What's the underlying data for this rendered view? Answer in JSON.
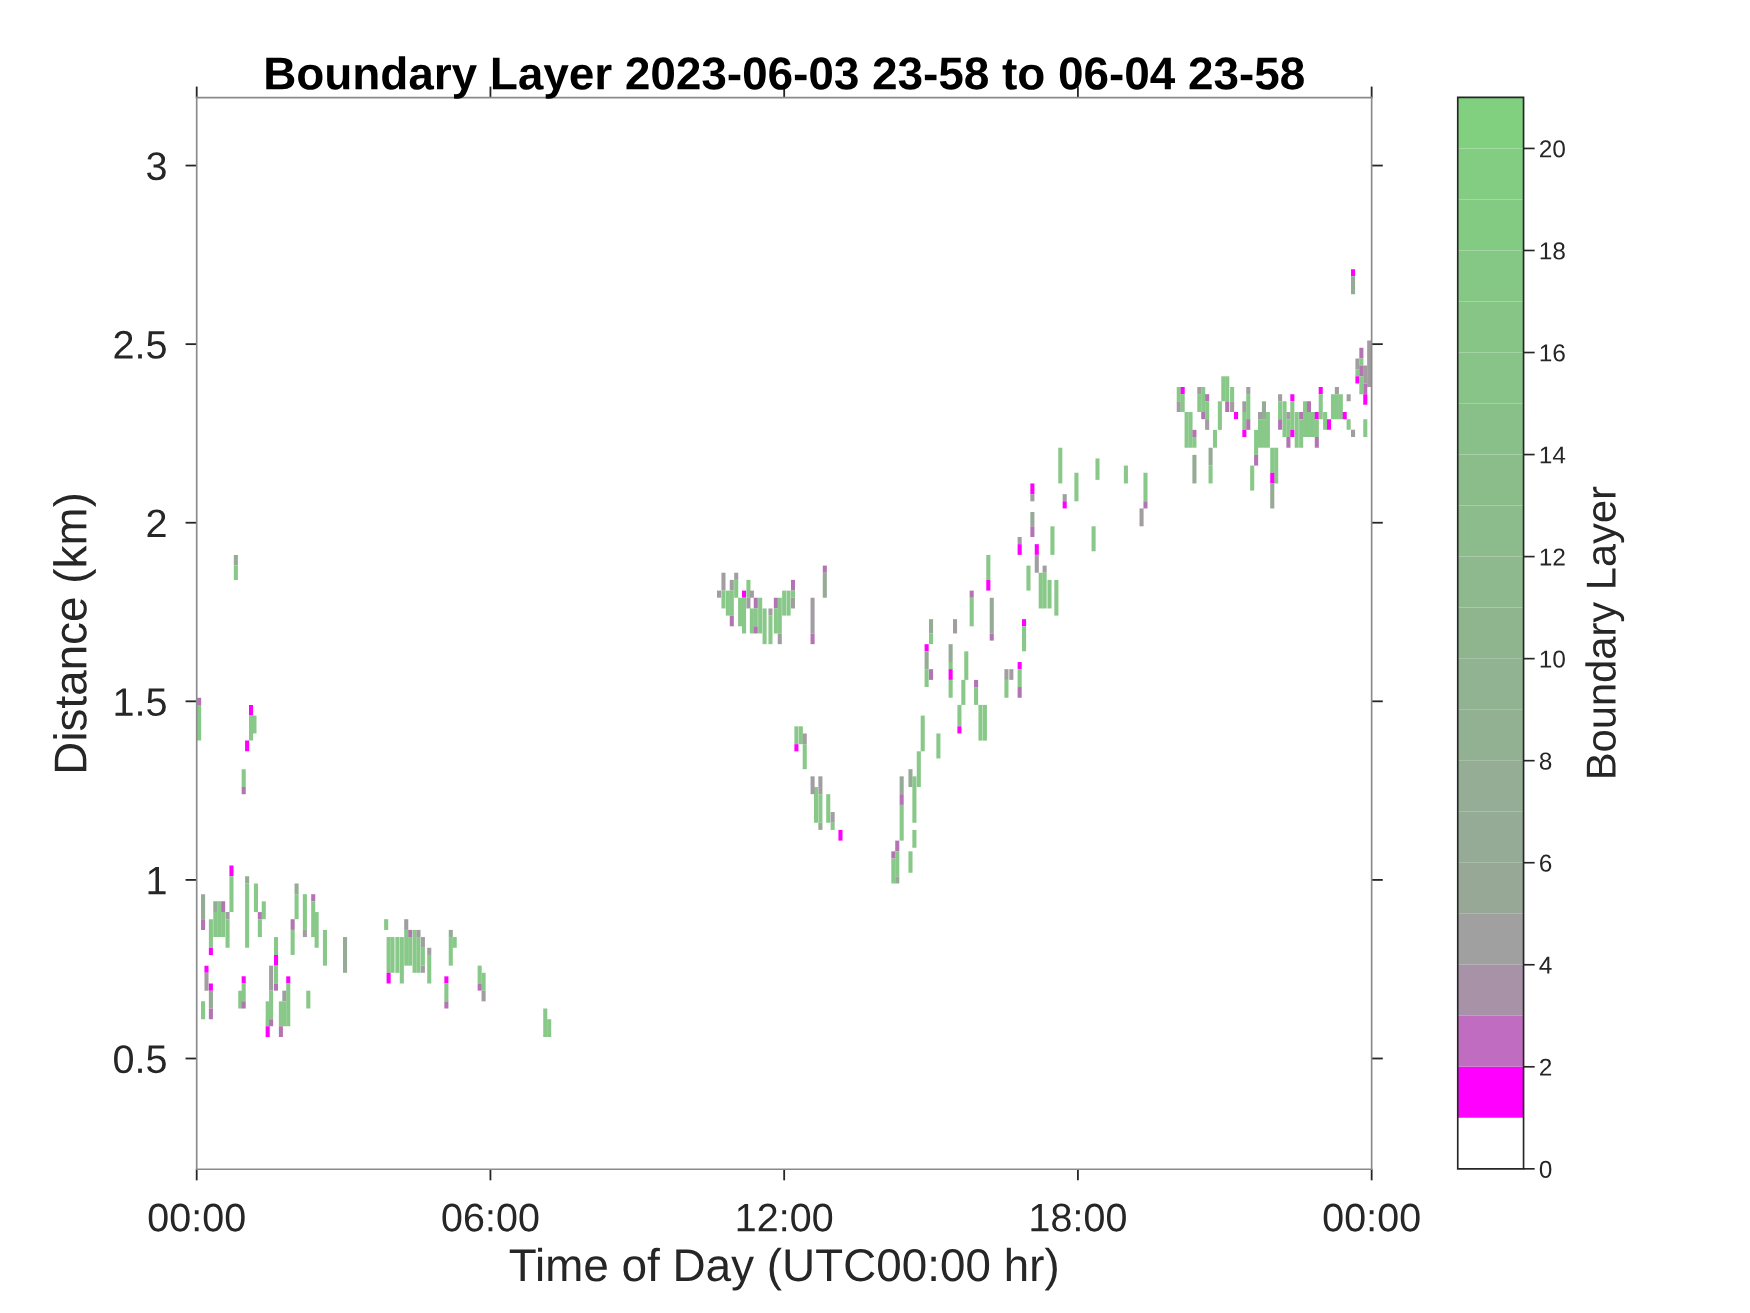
{
  "chart_data": {
    "type": "bar",
    "title": "Boundary Layer 2023-06-03 23-58 to 06-04 23-58",
    "xlabel": "Time of Day (UTC00:00 hr)",
    "ylabel": "Distance (km)",
    "clabel": "Boundary Layer",
    "series": [
      {
        "x": [
          0.05,
          0.13,
          0.2,
          0.29,
          0.38,
          0.46,
          0.54,
          0.63,
          0.71,
          0.8,
          0.89,
          0.96,
          1.03,
          1.11,
          1.18,
          1.21,
          1.29,
          1.37,
          1.45,
          1.52,
          1.62,
          1.72,
          1.79,
          1.87,
          1.96,
          2.04,
          2.21,
          2.28,
          2.38,
          2.45,
          2.62,
          3.03,
          3.87,
          3.92,
          4.0,
          4.1,
          4.19,
          4.28,
          4.36,
          4.45,
          4.53,
          4.62,
          4.75,
          5.1,
          5.19,
          5.27,
          5.78,
          5.86,
          7.12,
          7.2,
          10.67,
          10.76,
          10.85,
          10.93,
          11.02,
          11.1,
          11.18,
          11.27,
          11.34,
          11.42,
          11.51,
          11.6,
          11.72,
          11.83,
          11.91,
          12.0,
          12.09,
          12.18,
          12.25,
          12.34,
          12.42,
          12.58,
          12.65,
          12.74,
          12.83,
          12.9,
          12.99,
          13.15,
          14.23,
          14.31,
          14.4,
          14.58,
          14.66,
          14.75,
          14.83,
          14.91,
          15.0,
          15.15,
          15.4,
          15.49,
          15.58,
          15.66,
          15.72,
          15.83,
          15.92,
          16.01,
          16.1,
          16.17,
          16.24,
          16.54,
          16.64,
          16.81,
          16.9,
          16.99,
          17.07,
          17.16,
          17.24,
          17.32,
          17.42,
          17.48,
          17.56,
          17.64,
          17.73,
          17.97,
          18.32,
          18.4,
          18.98,
          19.3,
          19.38,
          20.06,
          20.14,
          20.22,
          20.3,
          20.38,
          20.48,
          20.56,
          20.64,
          20.71,
          20.8,
          20.9,
          20.97,
          21.05,
          21.15,
          21.23,
          21.4,
          21.48,
          21.56,
          21.64,
          21.72,
          21.8,
          21.88,
          21.97,
          22.05,
          22.13,
          22.22,
          22.3,
          22.38,
          22.47,
          22.56,
          22.64,
          22.72,
          22.8,
          22.88,
          22.96,
          23.05,
          23.13,
          23.21,
          23.29,
          23.37,
          23.45,
          23.53,
          23.62,
          23.71,
          23.79,
          23.87,
          23.95
        ],
        "base": [
          1.49,
          0.89,
          0.74,
          0.81,
          0.91,
          0.84,
          0.91,
          0.89,
          1.01,
          1.88,
          0.64,
          1.26,
          1.36,
          1.46,
          1.41,
          0.91,
          0.89,
          0.89,
          0.59,
          0.69,
          0.79,
          0.59,
          0.66,
          0.71,
          0.86,
          0.96,
          0.86,
          0.64,
          0.94,
          0.81,
          0.76,
          0.74,
          0.86,
          0.74,
          0.74,
          0.74,
          0.71,
          0.86,
          0.84,
          0.74,
          0.84,
          0.81,
          0.79,
          0.71,
          0.84,
          0.81,
          0.71,
          0.69,
          0.56,
          0.56,
          1.79,
          1.81,
          1.74,
          1.81,
          1.84,
          1.71,
          1.79,
          1.79,
          1.79,
          1.76,
          1.69,
          1.66,
          1.74,
          1.76,
          1.69,
          1.74,
          1.74,
          1.81,
          1.38,
          1.38,
          1.38,
          1.69,
          1.16,
          1.24,
          1.86,
          1.16,
          1.16,
          1.11,
          1.06,
          1.08,
          1.24,
          1.26,
          1.16,
          1.26,
          1.36,
          1.64,
          1.69,
          1.34,
          1.61,
          1.69,
          1.43,
          1.49,
          1.56,
          1.79,
          1.54,
          1.39,
          1.39,
          1.84,
          1.69,
          1.56,
          1.56,
          1.94,
          1.71,
          1.81,
          2.08,
          1.91,
          1.76,
          1.86,
          1.76,
          1.91,
          1.74,
          2.11,
          2.06,
          2.06,
          1.92,
          2.12,
          2.11,
          1.99,
          2.06,
          2.34,
          2.36,
          2.21,
          2.21,
          2.24,
          2.36,
          2.31,
          2.34,
          2.16,
          2.21,
          2.26,
          2.34,
          2.34,
          2.34,
          2.29,
          2.31,
          2.36,
          2.09,
          2.19,
          2.29,
          2.29,
          2.21,
          2.14,
          2.11,
          2.34,
          2.24,
          2.29,
          2.34,
          2.21,
          2.29,
          2.24,
          2.31,
          2.24,
          2.29,
          2.36,
          2.26,
          2.26,
          2.29,
          2.36,
          2.29,
          2.29,
          2.34,
          2.69,
          2.43,
          2.46,
          2.39,
          2.38
        ],
        "values": [
          0.02,
          0.07,
          0.02,
          0.08,
          0.03,
          0.1,
          0.03,
          0.02,
          0.03,
          0.03,
          0.05,
          0.05,
          0.03,
          0.03,
          0.05,
          0.08,
          0.02,
          0.05,
          0.07,
          0.07,
          0.05,
          0.07,
          0.03,
          0.02,
          0.03,
          0.03,
          0.1,
          0.05,
          0.02,
          0.1,
          0.1,
          0.1,
          0.03,
          0.1,
          0.1,
          0.1,
          0.13,
          0.03,
          0.02,
          0.12,
          0.02,
          0.03,
          0.02,
          0.02,
          0.02,
          0.03,
          0.05,
          0.05,
          0.08,
          0.05,
          0.02,
          0.05,
          0.07,
          0.03,
          0.02,
          0.08,
          0.02,
          0.05,
          0.02,
          0.03,
          0.1,
          0.1,
          0.02,
          0.03,
          0.1,
          0.07,
          0.07,
          0.03,
          0.05,
          0.05,
          0.03,
          0.1,
          0.1,
          0.05,
          0.02,
          0.08,
          0.03,
          0.03,
          0.02,
          0.03,
          0.05,
          0.05,
          0.13,
          0.1,
          0.1,
          0.02,
          0.04,
          0.07,
          0.05,
          0.04,
          0.06,
          0.07,
          0.08,
          0.02,
          0.02,
          0.1,
          0.1,
          0.07,
          0.1,
          0.03,
          0.03,
          0.02,
          0.02,
          0.07,
          0.03,
          0.03,
          0.1,
          0.02,
          0.08,
          0.08,
          0.1,
          0.1,
          0.02,
          0.08,
          0.07,
          0.06,
          0.05,
          0.05,
          0.08,
          0.04,
          0.02,
          0.1,
          0.1,
          0.02,
          0.02,
          0.07,
          0.02,
          0.05,
          0.05,
          0.08,
          0.07,
          0.07,
          0.04,
          0.02,
          0.03,
          0.02,
          0.07,
          0.07,
          0.02,
          0.05,
          0.1,
          0.07,
          0.1,
          0.02,
          0.1,
          0.02,
          0.02,
          0.1,
          0.02,
          0.1,
          0.03,
          0.07,
          0.02,
          0.02,
          0.05,
          0.03,
          0.07,
          0.02,
          0.07,
          0.02,
          0.02,
          0.02,
          0.03,
          0.03,
          0.05,
          0.13
        ],
        "colors": [
          "#b474b4",
          "#95ab95",
          "#ff00ff",
          "#88c888",
          "#95ab95",
          "#88c888",
          "#b474b4",
          "#a19da1",
          "#ff00ff",
          "#95ab95",
          "#88c888",
          "#88c888",
          "#ff00ff",
          "#ff00ff",
          "#88c888",
          "#88c888",
          "#b474b4",
          "#88c888",
          "#88c888",
          "#a19da1",
          "#88c888",
          "#88c888",
          "#a19da1",
          "#ff00ff",
          "#b474b4",
          "#95ab95",
          "#88c888",
          "#88c888",
          "#b474b4",
          "#88c888",
          "#88c888",
          "#95ab95",
          "#88c888",
          "#88c888",
          "#88c888",
          "#88c888",
          "#88c888",
          "#a19da1",
          "#b474b4",
          "#88c888",
          "#a19da1",
          "#a19da1",
          "#a19da1",
          "#ff00ff",
          "#95ab95",
          "#88c888",
          "#88c888",
          "#88c888",
          "#88c888",
          "#88c888",
          "#a19da1",
          "#a19da1",
          "#88c888",
          "#a19da1",
          "#a19da1",
          "#88c888",
          "#ff00ff",
          "#88c888",
          "#a19da1",
          "#b474b4",
          "#88c888",
          "#88c888",
          "#a19da1",
          "#b474b4",
          "#88c888",
          "#88c888",
          "#88c888",
          "#b474b4",
          "#88c888",
          "#88c888",
          "#a19da1",
          "#a19da1",
          "#88c888",
          "#a19da1",
          "#b474b4",
          "#88c888",
          "#a19da1",
          "#ff00ff",
          "#b474b4",
          "#b474b4",
          "#95ab95",
          "#95ab95",
          "#88c888",
          "#88c888",
          "#88c888",
          "#ff00ff",
          "#95ab95",
          "#88c888",
          "#95ab95",
          "#a19da1",
          "#88c888",
          "#88c888",
          "#88c888",
          "#b474b4",
          "#b474b4",
          "#88c888",
          "#88c888",
          "#88c888",
          "#95ab95",
          "#a19da1",
          "#a19da1",
          "#a19da1",
          "#ff00ff",
          "#88c888",
          "#ff00ff",
          "#ff00ff",
          "#88c888",
          "#a19da1",
          "#88c888",
          "#88c888",
          "#88c888",
          "#88c888",
          "#a19da1",
          "#88c888",
          "#88c888",
          "#88c888",
          "#88c888",
          "#a19da1",
          "#88c888",
          "#88c888",
          "#ff00ff",
          "#88c888",
          "#88c888",
          "#b474b4",
          "#a19da1",
          "#88c888",
          "#b474b4",
          "#95ab95",
          "#88c888",
          "#88c888",
          "#88c888",
          "#88c888",
          "#88c888",
          "#ff00ff",
          "#a19da1",
          "#a19da1",
          "#88c888",
          "#88c888",
          "#a19da1",
          "#95ab95",
          "#88c888",
          "#88c888",
          "#88c888",
          "#a19da1",
          "#88c888",
          "#a19da1",
          "#ff00ff",
          "#88c888",
          "#b474b4",
          "#88c888",
          "#b474b4",
          "#88c888",
          "#ff00ff",
          "#ff00ff",
          "#88c888",
          "#ff00ff",
          "#88c888",
          "#a19da1",
          "#88c888",
          "#ff00ff",
          "#a19da1",
          "#ff00ff",
          "#a19da1",
          "#b474b4",
          "#a19da1",
          "#a19da1"
        ]
      },
      {
        "x": [
          0.05,
          0.13,
          0.2,
          0.29,
          0.38,
          0.54,
          0.63,
          0.71,
          0.8,
          0.96,
          1.03,
          1.11,
          1.29,
          1.45,
          1.52,
          1.62,
          1.72,
          1.79,
          1.87,
          1.96,
          2.04,
          2.21,
          2.38,
          3.92,
          4.28,
          4.36,
          4.53,
          4.62,
          4.75,
          5.1,
          5.19,
          5.78,
          5.86,
          10.76,
          10.93,
          11.02,
          11.18,
          11.27,
          11.34,
          11.42,
          11.72,
          11.83,
          11.91,
          12.18,
          12.25,
          12.42,
          12.58,
          12.74,
          12.83,
          12.99,
          14.23,
          14.31,
          14.4,
          14.58,
          14.66,
          14.91,
          15.0,
          15.4,
          15.58,
          15.83,
          15.92,
          16.17,
          16.24,
          16.54,
          16.81,
          16.9,
          17.07,
          17.16,
          17.32,
          17.73,
          19.38,
          20.06,
          20.14,
          20.38,
          20.48,
          20.56,
          20.64,
          20.71,
          21.05,
          21.15,
          21.4,
          21.48,
          21.64,
          21.72,
          21.8,
          21.97,
          22.13,
          22.3,
          22.38,
          22.56,
          22.72,
          22.88,
          22.96,
          23.29,
          23.53,
          23.62,
          23.71,
          23.79,
          23.87
        ],
        "base": [
          1.39,
          0.86,
          0.69,
          0.79,
          0.84,
          0.84,
          0.81,
          0.91,
          1.84,
          1.24,
          0.99,
          1.39,
          0.84,
          0.56,
          0.61,
          0.76,
          0.56,
          0.59,
          0.59,
          0.79,
          0.89,
          0.84,
          0.84,
          0.71,
          0.76,
          0.76,
          0.74,
          0.76,
          0.71,
          0.66,
          0.76,
          0.69,
          0.66,
          1.76,
          1.74,
          1.79,
          1.69,
          1.76,
          1.69,
          1.71,
          1.66,
          1.69,
          1.66,
          1.79,
          1.36,
          1.31,
          1.66,
          1.16,
          1.79,
          1.14,
          0.99,
          1.01,
          1.21,
          1.02,
          1.09,
          1.59,
          1.66,
          1.59,
          1.41,
          1.71,
          1.49,
          1.81,
          1.67,
          1.51,
          1.91,
          1.64,
          2.06,
          1.86,
          1.76,
          2.04,
          2.04,
          2.31,
          2.31,
          2.21,
          2.31,
          2.29,
          2.29,
          2.11,
          2.31,
          2.31,
          2.26,
          2.29,
          2.16,
          2.21,
          2.21,
          2.11,
          2.29,
          2.24,
          2.26,
          2.21,
          2.24,
          2.24,
          2.29,
          2.29,
          2.26,
          2.64,
          2.41,
          2.44,
          2.36
        ],
        "values": [
          0.1,
          0.03,
          0.05,
          0.02,
          0.07,
          0.07,
          0.08,
          0.1,
          0.04,
          0.02,
          0.02,
          0.07,
          0.05,
          0.03,
          0.08,
          0.03,
          0.03,
          0.07,
          0.12,
          0.07,
          0.07,
          0.02,
          0.1,
          0.03,
          0.1,
          0.08,
          0.1,
          0.05,
          0.08,
          0.05,
          0.08,
          0.02,
          0.03,
          0.05,
          0.07,
          0.05,
          0.1,
          0.03,
          0.07,
          0.05,
          0.08,
          0.07,
          0.03,
          0.02,
          0.02,
          0.07,
          0.03,
          0.08,
          0.07,
          0.02,
          0.07,
          0.07,
          0.03,
          0.06,
          0.05,
          0.05,
          0.03,
          0.02,
          0.02,
          0.08,
          0.05,
          0.03,
          0.02,
          0.05,
          0.03,
          0.07,
          0.02,
          0.05,
          0.1,
          0.02,
          0.02,
          0.03,
          0.05,
          0.03,
          0.05,
          0.02,
          0.05,
          0.05,
          0.03,
          0.03,
          0.05,
          0.07,
          0.03,
          0.08,
          0.08,
          0.03,
          0.05,
          0.05,
          0.08,
          0.08,
          0.07,
          0.05,
          0.07,
          0.07,
          0.03,
          0.05,
          0.02,
          0.02,
          0.03
        ],
        "colors": [
          "#88c888",
          "#b474b4",
          "#a19da1",
          "#ff00ff",
          "#88c888",
          "#88c888",
          "#88c888",
          "#88c888",
          "#88c888",
          "#b474b4",
          "#95ab95",
          "#88c888",
          "#88c888",
          "#ff00ff",
          "#88c888",
          "#ff00ff",
          "#b474b4",
          "#88c888",
          "#88c888",
          "#88c888",
          "#88c888",
          "#a19da1",
          "#88c888",
          "#ff00ff",
          "#88c888",
          "#88c888",
          "#88c888",
          "#88c888",
          "#88c888",
          "#88c888",
          "#88c888",
          "#b474b4",
          "#a19da1",
          "#88c888",
          "#88c888",
          "#88c888",
          "#88c888",
          "#a19da1",
          "#88c888",
          "#88c888",
          "#88c888",
          "#88c888",
          "#a19da1",
          "#88c888",
          "#ff00ff",
          "#88c888",
          "#b474b4",
          "#88c888",
          "#95ab95",
          "#88c888",
          "#88c888",
          "#88c888",
          "#b474b4",
          "#88c888",
          "#88c888",
          "#95ab95",
          "#88c888",
          "#88c888",
          "#ff00ff",
          "#88c888",
          "#88c888",
          "#ff00ff",
          "#b474b4",
          "#88c888",
          "#ff00ff",
          "#88c888",
          "#a19da1",
          "#a19da1",
          "#88c888",
          "#ff00ff",
          "#b474b4",
          "#a19da1",
          "#88c888",
          "#88c888",
          "#88c888",
          "#b474b4",
          "#88c888",
          "#88c888",
          "#b474b4",
          "#a19da1",
          "#88c888",
          "#88c888",
          "#b474b4",
          "#88c888",
          "#88c888",
          "#ff00ff",
          "#88c888",
          "#88c888",
          "#88c888",
          "#88c888",
          "#88c888",
          "#88c888",
          "#88c888",
          "#88c888",
          "#88c888",
          "#95ab95",
          "#88c888",
          "#88c888",
          "#b474b4"
        ]
      },
      {
        "x": [
          0.13,
          0.29,
          0.96,
          1.03,
          1.52,
          1.62,
          4.62,
          5.1,
          10.93,
          11.42,
          12.18,
          12.58,
          12.74,
          14.31,
          14.4,
          14.91,
          15.0,
          15.4,
          16.81,
          17.07,
          20.38,
          20.64,
          21.4,
          21.48,
          21.97,
          22.13,
          22.3,
          22.38,
          22.88,
          23.62,
          23.71,
          23.79,
          23.87
        ],
        "base": [
          0.61,
          0.69,
          0.71,
          0.81,
          0.59,
          0.71,
          0.74,
          0.64,
          1.71,
          1.69,
          1.76,
          1.24,
          1.14,
          0.99,
          1.11,
          1.54,
          1.56,
          1.56,
          1.59,
          1.99,
          2.11,
          2.26,
          2.24,
          2.26,
          2.04,
          2.26,
          2.21,
          2.24,
          2.21,
          2.24,
          2.39,
          2.41,
          2.33
        ],
        "values": [
          0.05,
          0.02,
          0.02,
          0.18,
          0.02,
          0.05,
          0.02,
          0.02,
          0.03,
          0.02,
          0.03,
          0.05,
          0.02,
          0.02,
          0.1,
          0.05,
          0.03,
          0.03,
          0.02,
          0.04,
          0.08,
          0.03,
          0.02,
          0.03,
          0.07,
          0.03,
          0.03,
          0.02,
          0.03,
          0.02,
          0.02,
          0.03,
          0.03
        ],
        "colors": [
          "#88c888",
          "#ff00ff",
          "#ff00ff",
          "#88c888",
          "#b474b4",
          "#88c888",
          "#a19da1",
          "#b474b4",
          "#b474b4",
          "#b474b4",
          "#a19da1",
          "#a19da1",
          "#95ab95",
          "#95ab95",
          "#88c888",
          "#88c888",
          "#b474b4",
          "#ff00ff",
          "#ff00ff",
          "#95ab95",
          "#95ab95",
          "#a19da1",
          "#ff00ff",
          "#b474b4",
          "#95ab95",
          "#b474b4",
          "#b474b4",
          "#ff00ff",
          "#b474b4",
          "#a19da1",
          "#ff00ff",
          "#b474b4",
          "#ff00ff"
        ]
      },
      {
        "x": [
          0.29,
          0.96,
          1.62,
          15.4,
          16.81,
          17.07,
          23.79,
          23.87
        ],
        "base": [
          0.64,
          0.66,
          0.69,
          1.51,
          1.54,
          1.96,
          2.36,
          2.24
        ],
        "values": [
          0.05,
          0.05,
          0.02,
          0.05,
          0.05,
          0.03,
          0.05,
          0.05
        ],
        "colors": [
          "#95ab95",
          "#88c888",
          "#b474b4",
          "#88c888",
          "#88c888",
          "#b474b4",
          "#88c888",
          "#88c888"
        ]
      },
      {
        "x": [
          0.29,
          0.96,
          16.81
        ],
        "base": [
          0.61,
          0.64,
          1.51
        ],
        "values": [
          0.03,
          0.02,
          0.03
        ],
        "colors": [
          "#b474b4",
          "#b474b4",
          "#b474b4"
        ]
      }
    ],
    "xlim": [
      0,
      24
    ],
    "ylim": [
      0.19,
      3.19
    ],
    "xticks": [
      {
        "value": 0,
        "label": "00:00"
      },
      {
        "value": 6,
        "label": "06:00"
      },
      {
        "value": 12,
        "label": "12:00"
      },
      {
        "value": 18,
        "label": "18:00"
      },
      {
        "value": 24,
        "label": "00:00"
      }
    ],
    "yticks": [
      0.5,
      1,
      1.5,
      2,
      2.5,
      3
    ],
    "clim": [
      0,
      21
    ],
    "cticks": [
      0,
      2,
      4,
      6,
      8,
      10,
      12,
      14,
      16,
      18,
      20
    ],
    "grid": false
  }
}
